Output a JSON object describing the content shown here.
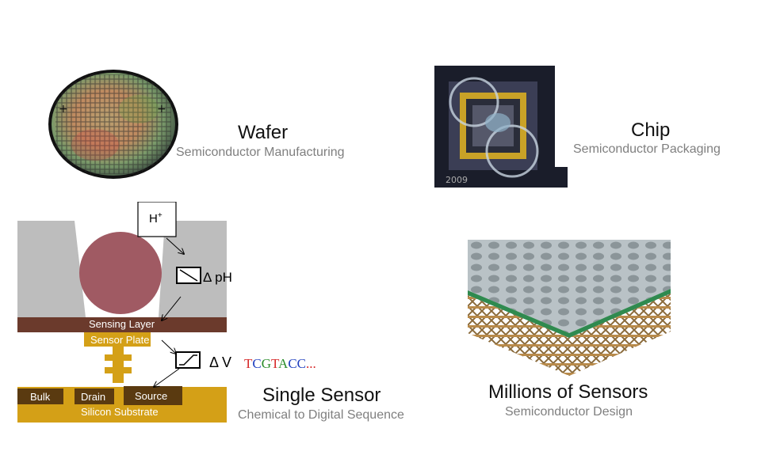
{
  "wafer": {
    "title": "Wafer",
    "subtitle": "Semiconductor Manufacturing"
  },
  "chip": {
    "title": "Chip",
    "subtitle": "Semiconductor Packaging",
    "etched_text": "2009"
  },
  "sensor": {
    "title": "Single Sensor",
    "subtitle": "Chemical to Digital Sequence",
    "ion": "H",
    "ion_charge": "+",
    "delta_ph": "Δ pH",
    "delta_v": "Δ V",
    "sensing_layer": "Sensing Layer",
    "sensor_plate": "Sensor Plate",
    "bulk": "Bulk",
    "drain": "Drain",
    "source": "Source",
    "substrate": "Silicon Substrate",
    "sequence": [
      {
        "char": "T",
        "color": "#d62728"
      },
      {
        "char": "C",
        "color": "#1f3fbf"
      },
      {
        "char": "G",
        "color": "#2a8c2a"
      },
      {
        "char": "T",
        "color": "#d62728"
      },
      {
        "char": "A",
        "color": "#2a8c2a"
      },
      {
        "char": "C",
        "color": "#1f3fbf"
      },
      {
        "char": "C",
        "color": "#1f3fbf"
      },
      {
        "char": "...",
        "color": "#d62728"
      }
    ]
  },
  "array": {
    "title": "Millions of Sensors",
    "subtitle": "Semiconductor Design"
  },
  "colors": {
    "gold": "#d4a017",
    "brown": "#6b3a2c",
    "gray": "#bdbdbd",
    "bead": "#a05a63",
    "text_gray": "#7f7f7f"
  }
}
